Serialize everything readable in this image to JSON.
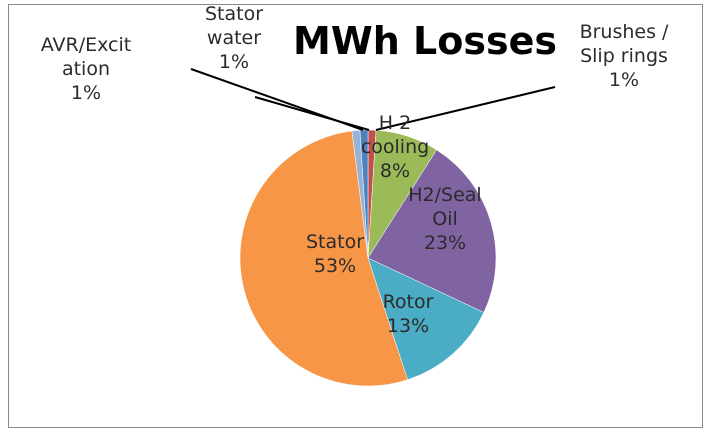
{
  "chart_data": {
    "type": "pie",
    "title": "MWh Losses",
    "slices": [
      {
        "label": "Brushes / Slip rings",
        "lines": [
          "Brushes /",
          "Slip rings"
        ],
        "percent_label": "1%",
        "value": 1,
        "color": "#C0504D"
      },
      {
        "label": "H 2 cooling",
        "lines": [
          "H 2",
          "cooling"
        ],
        "percent_label": "8%",
        "value": 8,
        "color": "#9BBB59"
      },
      {
        "label": "H2/Seal Oil",
        "lines": [
          "H2/Seal",
          "Oil"
        ],
        "percent_label": "23%",
        "value": 23,
        "color": "#8064A2"
      },
      {
        "label": "Rotor",
        "lines": [
          "Rotor"
        ],
        "percent_label": "13%",
        "value": 13,
        "color": "#4BACC6"
      },
      {
        "label": "Stator",
        "lines": [
          "Stator"
        ],
        "percent_label": "53%",
        "value": 53,
        "color": "#F79646"
      },
      {
        "label": "AVR/Excitation",
        "lines": [
          "AVR/Excit",
          "ation"
        ],
        "percent_label": "1%",
        "value": 1,
        "color": "#95B3D7"
      },
      {
        "label": "Stator water",
        "lines": [
          "Stator",
          "water"
        ],
        "percent_label": "1%",
        "value": 1,
        "color": "#4F81BD"
      }
    ],
    "start_angle_deg": 0,
    "direction": "clockwise",
    "legend": "none"
  }
}
